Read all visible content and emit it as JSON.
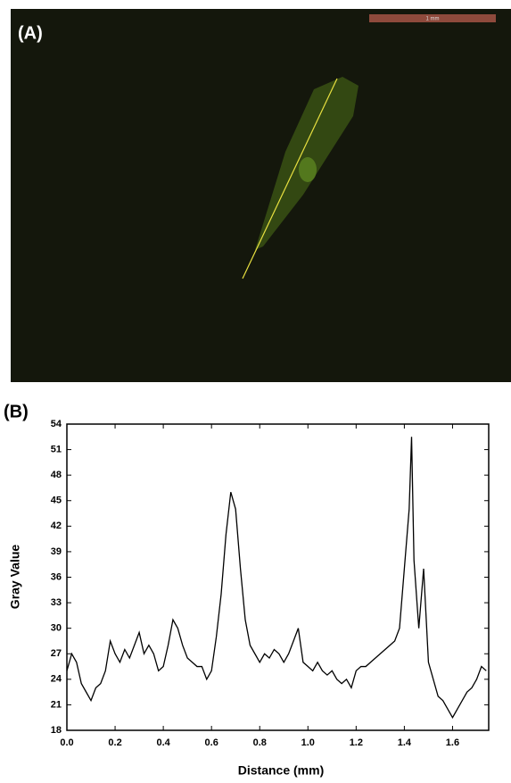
{
  "panel_a": {
    "label": "(A)",
    "scale_bar": "1 mm"
  },
  "panel_b_label": "(B)",
  "chart_data": {
    "type": "line",
    "xlabel": "Distance (mm)",
    "ylabel": "Gray Value",
    "x": [
      0,
      0.02,
      0.04,
      0.06,
      0.08,
      0.1,
      0.12,
      0.14,
      0.16,
      0.18,
      0.2,
      0.22,
      0.24,
      0.26,
      0.28,
      0.3,
      0.32,
      0.34,
      0.36,
      0.38,
      0.4,
      0.42,
      0.44,
      0.46,
      0.48,
      0.5,
      0.52,
      0.54,
      0.56,
      0.58,
      0.6,
      0.62,
      0.64,
      0.66,
      0.68,
      0.7,
      0.72,
      0.74,
      0.76,
      0.78,
      0.8,
      0.82,
      0.84,
      0.86,
      0.88,
      0.9,
      0.92,
      0.94,
      0.96,
      0.98,
      1.0,
      1.02,
      1.04,
      1.06,
      1.08,
      1.1,
      1.12,
      1.14,
      1.16,
      1.18,
      1.2,
      1.22,
      1.24,
      1.26,
      1.28,
      1.3,
      1.32,
      1.34,
      1.36,
      1.38,
      1.4,
      1.42,
      1.43,
      1.44,
      1.46,
      1.48,
      1.5,
      1.52,
      1.54,
      1.56,
      1.58,
      1.6,
      1.62,
      1.64,
      1.66,
      1.68,
      1.7,
      1.72,
      1.74
    ],
    "series": [
      {
        "color": "#000000",
        "values": [
          25,
          27,
          26,
          23.5,
          22.5,
          21.5,
          23,
          23.5,
          25,
          28.5,
          27,
          26,
          27.5,
          26.5,
          28,
          29.5,
          27,
          28,
          27,
          25,
          25.5,
          28,
          31,
          30,
          28,
          26.5,
          26,
          25.5,
          25.5,
          24,
          25,
          29,
          34,
          41,
          46,
          44,
          37,
          31,
          28,
          27,
          26,
          27,
          26.5,
          27.5,
          27,
          26,
          27,
          28.5,
          30,
          26,
          25.5,
          25,
          26,
          25,
          24.5,
          25,
          24,
          23.5,
          24,
          23,
          25,
          25.5,
          25.5,
          26,
          26.5,
          27,
          27.5,
          28,
          28.5,
          30,
          37,
          44,
          52.5,
          38,
          30,
          37,
          26,
          24,
          22,
          21.5,
          20.5,
          19.5,
          20.5,
          21.5,
          22.5,
          23,
          24,
          25.5,
          25
        ]
      }
    ],
    "xlim": [
      0,
      1.75
    ],
    "ylim": [
      18,
      54
    ],
    "xticks": [
      {
        "value": 0,
        "label": "0.0"
      },
      0.2,
      0.4,
      0.6,
      0.8,
      {
        "value": 1,
        "label": "1.0"
      },
      1.2,
      1.4,
      1.6
    ],
    "yticks": [
      18,
      21,
      24,
      27,
      30,
      33,
      36,
      39,
      42,
      45,
      48,
      51,
      54
    ],
    "grid": false
  }
}
